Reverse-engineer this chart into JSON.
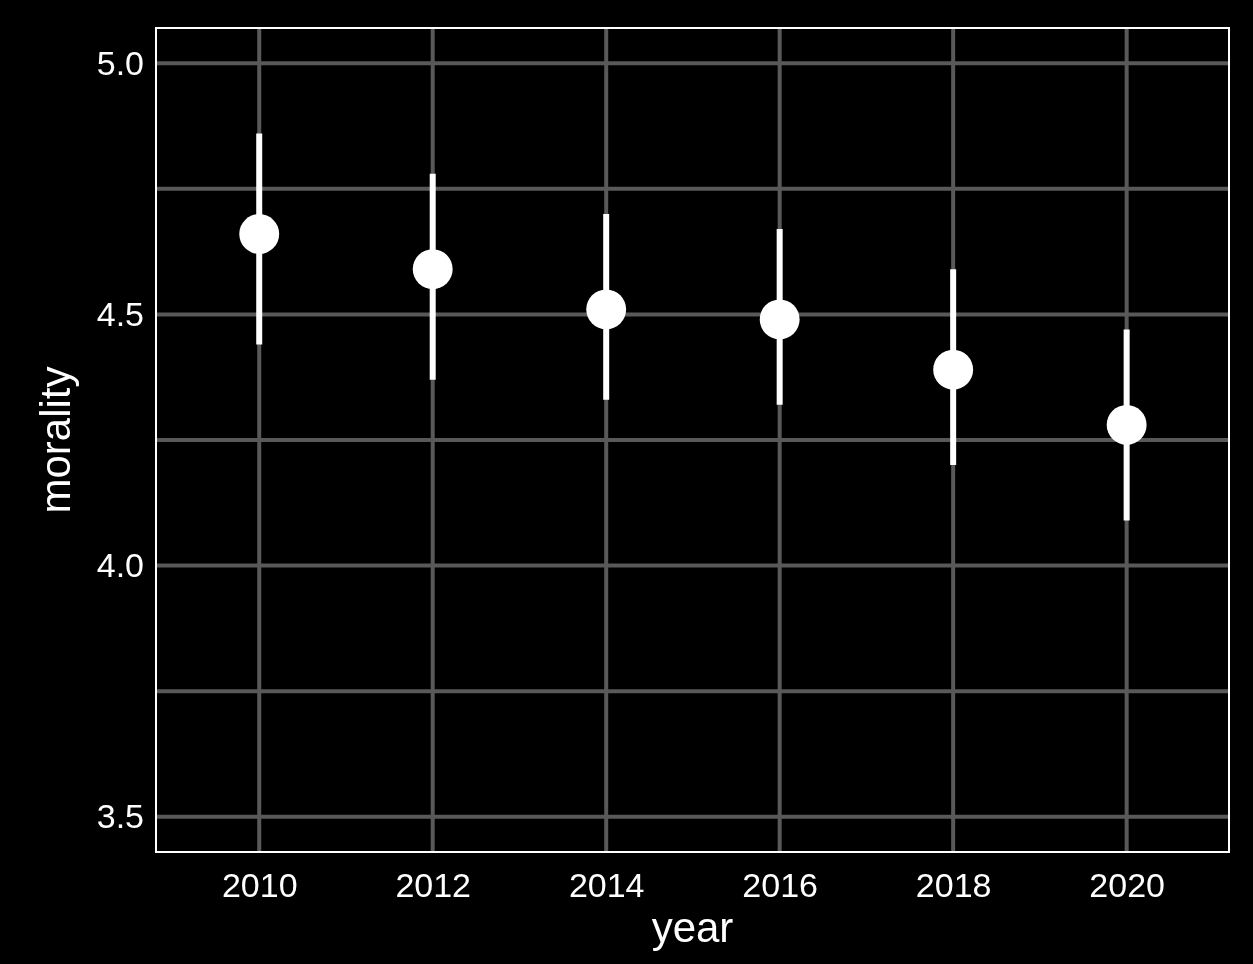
{
  "chart_data": {
    "type": "scatter",
    "xlabel": "year",
    "ylabel": "morality",
    "x": [
      2010,
      2012,
      2014,
      2016,
      2018,
      2020
    ],
    "series": [
      {
        "color": "#ffffff",
        "values": [
          4.66,
          4.59,
          4.51,
          4.49,
          4.39,
          4.28
        ],
        "errors": [
          [
            4.44,
            4.86
          ],
          [
            4.37,
            4.78
          ],
          [
            4.33,
            4.7
          ],
          [
            4.32,
            4.67
          ],
          [
            4.2,
            4.59
          ],
          [
            4.09,
            4.47
          ]
        ]
      }
    ],
    "xlim": [
      2008.81,
      2021.18
    ],
    "xticks": [
      2010,
      2012,
      2014,
      2016,
      2018,
      2020
    ],
    "ylim": [
      3.43,
      5.07
    ],
    "yticks": [
      {
        "value": 3.5,
        "label": "3.5"
      },
      {
        "value": 3.75,
        "label": null
      },
      {
        "value": 4.0,
        "label": "4.0"
      },
      {
        "value": 4.25,
        "label": null
      },
      {
        "value": 4.5,
        "label": "4.5"
      },
      {
        "value": 4.75,
        "label": null
      },
      {
        "value": 5.0,
        "label": "5.0"
      }
    ],
    "grid": true,
    "marker": "circle"
  }
}
